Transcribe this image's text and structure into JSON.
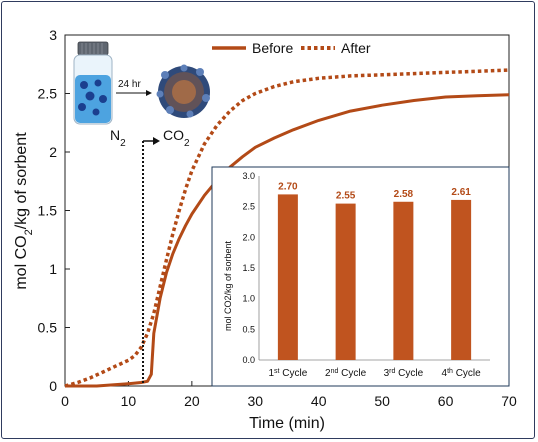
{
  "chart_data": [
    {
      "type": "line",
      "title": "",
      "xlabel": "Time (min)",
      "ylabel_parts": {
        "pre": "mol CO",
        "sub": "2",
        "post": "/kg of sorbent"
      },
      "xlim": [
        0,
        70
      ],
      "ylim": [
        0,
        3
      ],
      "xticks": [
        0,
        10,
        20,
        30,
        40,
        50,
        60,
        70
      ],
      "yticks": [
        0,
        0.5,
        1,
        1.5,
        2,
        2.5,
        3
      ],
      "ytick_labels": [
        "0",
        "0.5",
        "1",
        "1.5",
        "2",
        "2.5",
        "3"
      ],
      "legend_position": "top-right",
      "series": [
        {
          "name": "Before",
          "style": "solid",
          "color": "#b34a17",
          "x": [
            0,
            5,
            10,
            12,
            13,
            13.6,
            14,
            15,
            16,
            17,
            18,
            19,
            20,
            22,
            24,
            26,
            28,
            30,
            33,
            36,
            40,
            45,
            50,
            55,
            60,
            65,
            70
          ],
          "y": [
            0,
            0,
            0.02,
            0.03,
            0.04,
            0.1,
            0.45,
            0.75,
            0.97,
            1.13,
            1.26,
            1.37,
            1.47,
            1.63,
            1.76,
            1.87,
            1.96,
            2.04,
            2.12,
            2.19,
            2.27,
            2.35,
            2.4,
            2.44,
            2.47,
            2.48,
            2.49
          ]
        },
        {
          "name": "After",
          "style": "dotted",
          "color": "#b34a17",
          "x": [
            0,
            2,
            4,
            6,
            8,
            10,
            11,
            12,
            13,
            14,
            15,
            16,
            17,
            18,
            19,
            20,
            22,
            24,
            26,
            28,
            30,
            33,
            36,
            40,
            45,
            50,
            55,
            60,
            65,
            70
          ],
          "y": [
            0,
            0.03,
            0.07,
            0.12,
            0.17,
            0.22,
            0.26,
            0.33,
            0.45,
            0.62,
            0.85,
            1.08,
            1.3,
            1.5,
            1.68,
            1.84,
            2.07,
            2.23,
            2.35,
            2.44,
            2.5,
            2.56,
            2.6,
            2.63,
            2.65,
            2.66,
            2.67,
            2.68,
            2.69,
            2.7
          ]
        }
      ],
      "annotations": {
        "gas_from": "N",
        "gas_from_sub": "2",
        "gas_to": "CO",
        "gas_to_sub": "2",
        "switch_time": 12.3,
        "soak_label": "24 hr"
      }
    },
    {
      "type": "bar",
      "title": "",
      "ylabel": "mol CO2/kg of sorbent",
      "ylim": [
        0,
        3
      ],
      "yticks": [
        "0.0",
        "0.5",
        "1.0",
        "1.5",
        "2.0",
        "2.5",
        "3.0"
      ],
      "color": "#c0541f",
      "categories": [
        {
          "num": "1",
          "sup": "st",
          "word": " Cycle"
        },
        {
          "num": "2",
          "sup": "nd",
          "word": " Cycle"
        },
        {
          "num": "3",
          "sup": "rd",
          "word": " Cycle"
        },
        {
          "num": "4",
          "sup": "th",
          "word": " Cycle"
        }
      ],
      "values": [
        2.7,
        2.55,
        2.58,
        2.61
      ],
      "value_labels": [
        "2.70",
        "2.55",
        "2.58",
        "2.61"
      ]
    }
  ]
}
